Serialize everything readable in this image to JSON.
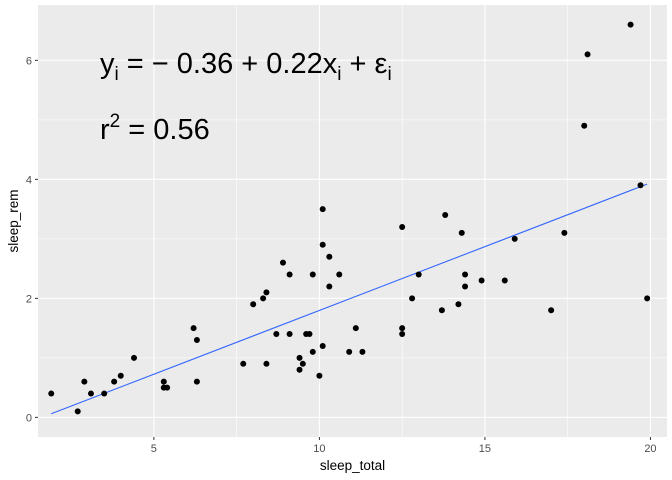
{
  "chart_data": {
    "type": "scatter",
    "xlabel": "sleep_total",
    "ylabel": "sleep_rem",
    "xlim": [
      1.5,
      20.5
    ],
    "ylim": [
      -0.33,
      6.93
    ],
    "x_ticks": [
      5,
      10,
      15,
      20
    ],
    "y_ticks": [
      0,
      2,
      4,
      6
    ],
    "grid": true,
    "points": [
      [
        1.9,
        0.4
      ],
      [
        2.7,
        0.1
      ],
      [
        2.9,
        0.6
      ],
      [
        3.1,
        0.4
      ],
      [
        3.5,
        0.4
      ],
      [
        3.8,
        0.6
      ],
      [
        4.0,
        0.7
      ],
      [
        4.4,
        1.0
      ],
      [
        5.3,
        0.6
      ],
      [
        5.3,
        0.5
      ],
      [
        5.4,
        0.5
      ],
      [
        6.2,
        1.5
      ],
      [
        6.3,
        1.3
      ],
      [
        6.3,
        0.6
      ],
      [
        7.7,
        0.9
      ],
      [
        8.0,
        1.9
      ],
      [
        8.3,
        2.0
      ],
      [
        8.4,
        2.1
      ],
      [
        8.4,
        0.9
      ],
      [
        8.7,
        1.4
      ],
      [
        8.9,
        2.6
      ],
      [
        9.1,
        2.4
      ],
      [
        9.1,
        1.4
      ],
      [
        9.4,
        1.0
      ],
      [
        9.4,
        0.8
      ],
      [
        9.5,
        0.9
      ],
      [
        9.6,
        1.4
      ],
      [
        9.7,
        1.4
      ],
      [
        9.8,
        2.4
      ],
      [
        9.8,
        1.1
      ],
      [
        10.0,
        0.7
      ],
      [
        10.1,
        3.5
      ],
      [
        10.1,
        2.9
      ],
      [
        10.1,
        1.2
      ],
      [
        10.3,
        2.7
      ],
      [
        10.3,
        2.2
      ],
      [
        10.6,
        2.4
      ],
      [
        10.9,
        1.1
      ],
      [
        11.1,
        1.5
      ],
      [
        11.3,
        1.1
      ],
      [
        12.5,
        3.2
      ],
      [
        12.5,
        1.5
      ],
      [
        12.5,
        1.4
      ],
      [
        12.8,
        2.0
      ],
      [
        13.0,
        2.4
      ],
      [
        13.7,
        1.8
      ],
      [
        13.8,
        3.4
      ],
      [
        14.2,
        1.9
      ],
      [
        14.3,
        3.1
      ],
      [
        14.4,
        2.4
      ],
      [
        14.4,
        2.2
      ],
      [
        14.9,
        2.3
      ],
      [
        15.6,
        2.3
      ],
      [
        15.9,
        3.0
      ],
      [
        17.0,
        1.8
      ],
      [
        17.4,
        3.1
      ],
      [
        18.0,
        4.9
      ],
      [
        18.1,
        6.1
      ],
      [
        19.4,
        6.6
      ],
      [
        19.7,
        3.9
      ],
      [
        19.9,
        2.0
      ]
    ],
    "fit_line": {
      "x": [
        1.9,
        19.9
      ],
      "y": [
        0.06,
        3.92
      ],
      "color": "#3366FF"
    },
    "point_color": "#000000",
    "panel_background": "#EBEBEB",
    "grid_color": "#FFFFFF"
  },
  "annotations": {
    "equation": {
      "y": "y",
      "i_sub1": "i",
      "eq1": " = − 0.36 + 0.22x",
      "i_sub2": "i",
      "eq2": " + ε",
      "i_sub3": "i"
    },
    "r2": {
      "r": "r",
      "sup": "2",
      "val": " = 0.56"
    }
  }
}
